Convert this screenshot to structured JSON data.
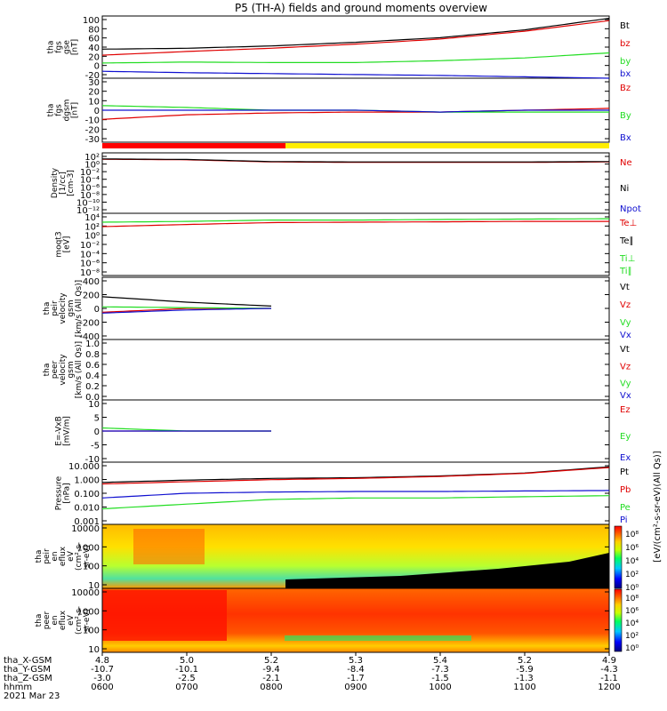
{
  "title": "P5 (TH-A) fields and ground moments overview",
  "date_label": "2021 Mar 23",
  "colors": {
    "black": "#000000",
    "red": "#e00000",
    "green": "#22dd22",
    "blue": "#1010d0",
    "bar_red": "#ff0000",
    "bar_yellow": "#ffee00"
  },
  "panels": [
    {
      "id": "fgs_gse",
      "ylabel": [
        "tha",
        "fgs",
        "gse",
        "[nT]"
      ],
      "ticks": [
        "100",
        "80",
        "60",
        "40",
        "20",
        "0",
        "-20"
      ],
      "legend": [
        {
          "text": "Bt",
          "color": "black"
        },
        {
          "text": "bz",
          "color": "red"
        },
        {
          "text": "by",
          "color": "green"
        },
        {
          "text": "bx",
          "color": "blue"
        }
      ]
    },
    {
      "id": "fgs_dgsm",
      "ylabel": [
        "tha",
        "fgs",
        "dgsm",
        "[nT]"
      ],
      "ticks": [
        "30",
        "20",
        "10",
        "0",
        "-10",
        "-20",
        "-30"
      ],
      "legend": [
        {
          "text": "Bz",
          "color": "red"
        },
        {
          "text": "By",
          "color": "green"
        },
        {
          "text": "Bx",
          "color": "blue"
        }
      ]
    },
    {
      "id": "density",
      "ylabel": [
        "Density",
        "[1/cc]",
        "[cm-3]"
      ],
      "ticks": [
        "10²",
        "10⁰",
        "10⁻²",
        "10⁻⁴",
        "10⁻⁶",
        "10⁻⁸",
        "10⁻¹⁰",
        "10⁻¹²"
      ],
      "legend": [
        {
          "text": "Ne",
          "color": "red"
        },
        {
          "text": "Ni",
          "color": "black"
        },
        {
          "text": "Npot",
          "color": "blue"
        }
      ]
    },
    {
      "id": "temp",
      "ylabel": [
        "moqt3",
        "[eV]"
      ],
      "ticks": [
        "10⁴",
        "10²",
        "10⁰",
        "10⁻²",
        "10⁻⁴",
        "10⁻⁶",
        "10⁻⁸"
      ],
      "legend": [
        {
          "text": "Te⊥",
          "color": "red"
        },
        {
          "text": "Te∥",
          "color": "black"
        },
        {
          "text": "Ti⊥",
          "color": "green"
        },
        {
          "text": "Ti∥",
          "color": "green"
        }
      ]
    },
    {
      "id": "peir_vel",
      "ylabel": [
        "tha",
        "peir",
        "velocity",
        "gsm",
        "[km/s (All Qs)]"
      ],
      "ticks": [
        "400",
        "200",
        "0",
        "-200",
        "-400"
      ],
      "legend": [
        {
          "text": "Vt",
          "color": "black"
        },
        {
          "text": "Vz",
          "color": "red"
        },
        {
          "text": "Vy",
          "color": "green"
        },
        {
          "text": "Vx",
          "color": "blue"
        }
      ]
    },
    {
      "id": "peer_vel",
      "ylabel": [
        "tha",
        "peer",
        "velocity",
        "gsm",
        "[km/s (All Qs)]"
      ],
      "ticks": [
        "1.0",
        "0.8",
        "0.6",
        "0.4",
        "0.2",
        "0.0"
      ],
      "legend": [
        {
          "text": "Vt",
          "color": "black"
        },
        {
          "text": "Vz",
          "color": "red"
        },
        {
          "text": "Vy",
          "color": "green"
        },
        {
          "text": "Vx",
          "color": "blue"
        }
      ]
    },
    {
      "id": "efield",
      "ylabel": [
        "E=-VxB",
        "[mV/m]"
      ],
      "ticks": [
        "10",
        "5",
        "0",
        "-5",
        "-10"
      ],
      "legend": [
        {
          "text": "Ez",
          "color": "red"
        },
        {
          "text": "Ey",
          "color": "green"
        },
        {
          "text": "Ex",
          "color": "blue"
        }
      ]
    },
    {
      "id": "pressure",
      "ylabel": [
        "Pressure",
        "[nPa]"
      ],
      "ticks": [
        "10.000",
        "1.000",
        "0.100",
        "0.010",
        "0.001"
      ],
      "legend": [
        {
          "text": "Pt",
          "color": "black"
        },
        {
          "text": "Pb",
          "color": "red"
        },
        {
          "text": "Pe",
          "color": "green"
        },
        {
          "text": "Pi",
          "color": "blue"
        }
      ]
    },
    {
      "id": "peir_en",
      "ylabel": [
        "tha",
        "peir",
        "en",
        "eflux",
        "eV",
        "(cm²-s-",
        "sr-eV)"
      ],
      "ticks": [
        "10000",
        "1000",
        "100",
        "10"
      ],
      "legend": []
    },
    {
      "id": "peer_en",
      "ylabel": [
        "tha",
        "peer",
        "en",
        "eflux",
        "eV",
        "(cm²-s-",
        "sr-eV)"
      ],
      "ticks": [
        "10000",
        "1000",
        "100",
        "10"
      ],
      "legend": []
    }
  ],
  "colorbar": {
    "label": "[eV/(cm²-s-sr-eV)(All Qs)]",
    "top_ticks": [
      "10⁸",
      "10⁶",
      "10⁴",
      "10²",
      "10⁰"
    ],
    "bottom_ticks": [
      "10⁸",
      "10⁶",
      "10⁴",
      "10²",
      "10⁰"
    ]
  },
  "xaxis": {
    "row_labels": [
      "tha_X-GSM",
      "tha_Y-GSM",
      "tha_Z-GSM",
      "hhmm",
      "2021 Mar 23"
    ],
    "columns": [
      [
        "4.8",
        "-10.7",
        "-3.0",
        "0600"
      ],
      [
        "5.0",
        "-10.1",
        "-2.5",
        "0700"
      ],
      [
        "5.2",
        "-9.4",
        "-2.1",
        "0800"
      ],
      [
        "5.3",
        "-8.4",
        "-1.7",
        "0900"
      ],
      [
        "5.4",
        "-7.3",
        "-1.5",
        "1000"
      ],
      [
        "5.2",
        "-5.9",
        "-1.3",
        "1100"
      ],
      [
        "4.9",
        "-4.3",
        "-1.1",
        "1200"
      ]
    ]
  },
  "chart_data": [
    {
      "type": "line",
      "panel": "fgs_gse",
      "ylim": [
        -30,
        105
      ],
      "time_range_hhmm": [
        "0600",
        "1200"
      ],
      "series": [
        {
          "name": "Bt",
          "x": [
            "0600",
            "0700",
            "0800",
            "0900",
            "1000",
            "1100",
            "1200"
          ],
          "values": [
            33,
            35,
            40,
            48,
            58,
            75,
            100
          ]
        },
        {
          "name": "bz",
          "x": [
            "0600",
            "0700",
            "0800",
            "0900",
            "1000",
            "1100",
            "1200"
          ],
          "values": [
            20,
            28,
            35,
            44,
            55,
            72,
            95
          ]
        },
        {
          "name": "by",
          "x": [
            "0600",
            "0700",
            "0800",
            "0900",
            "1000",
            "1100",
            "1200"
          ],
          "values": [
            3,
            5,
            4,
            4,
            8,
            14,
            25
          ]
        },
        {
          "name": "bx",
          "x": [
            "0600",
            "0700",
            "0800",
            "0900",
            "1000",
            "1100",
            "1200"
          ],
          "values": [
            -15,
            -18,
            -20,
            -22,
            -24,
            -27,
            -30
          ]
        }
      ]
    },
    {
      "type": "line",
      "panel": "fgs_dgsm",
      "ylim": [
        -35,
        35
      ],
      "series": [
        {
          "name": "Bz",
          "x": [
            "0600",
            "0700",
            "0800",
            "0900",
            "1000",
            "1100",
            "1200"
          ],
          "values": [
            -10,
            -5,
            -3,
            -2,
            -2,
            0,
            2
          ]
        },
        {
          "name": "By",
          "x": [
            "0600",
            "0700",
            "0800",
            "0900",
            "1000",
            "1100",
            "1200"
          ],
          "values": [
            5,
            3,
            0,
            0,
            -2,
            -2,
            -2
          ]
        },
        {
          "name": "Bx",
          "x": [
            "0600",
            "0700",
            "0800",
            "0900",
            "1000",
            "1100",
            "1200"
          ],
          "values": [
            0,
            0,
            0,
            0,
            -2,
            0,
            0
          ]
        }
      ]
    },
    {
      "type": "line",
      "panel": "density",
      "yscale": "log",
      "ylim": [
        1e-13,
        1000
      ],
      "series": [
        {
          "name": "Ne",
          "x": [
            "0600",
            "0700",
            "0800",
            "0900",
            "1000",
            "1100",
            "1200"
          ],
          "values": [
            20,
            15,
            4,
            3,
            3,
            3,
            4
          ]
        },
        {
          "name": "Ni",
          "x": [
            "0600",
            "0700",
            "0800",
            "0900",
            "1000",
            "1100",
            "1200"
          ],
          "values": [
            25,
            18,
            5,
            4,
            4,
            4,
            5
          ]
        }
      ]
    },
    {
      "type": "line",
      "panel": "temp",
      "yscale": "log",
      "ylim": [
        1e-09,
        100000
      ],
      "series": [
        {
          "name": "Te⊥",
          "x": [
            "0600",
            "0700",
            "0800",
            "0900",
            "1000",
            "1100",
            "1200"
          ],
          "values": [
            100,
            300,
            800,
            1000,
            1200,
            1500,
            1500
          ]
        },
        {
          "name": "Ti∥",
          "x": [
            "0600",
            "0700",
            "0800",
            "0900",
            "1000",
            "1100",
            "1200"
          ],
          "values": [
            1000,
            1500,
            3000,
            3000,
            4000,
            5000,
            6000
          ]
        }
      ]
    },
    {
      "type": "line",
      "panel": "peir_vel",
      "ylim": [
        -400,
        400
      ],
      "series": [
        {
          "name": "Vt",
          "x": [
            "0600",
            "0700",
            "0800"
          ],
          "values": [
            150,
            80,
            30
          ]
        },
        {
          "name": "Vz",
          "x": [
            "0600",
            "0700",
            "0800"
          ],
          "values": [
            -50,
            0,
            0
          ]
        },
        {
          "name": "Vy",
          "x": [
            "0600",
            "0700",
            "0800"
          ],
          "values": [
            20,
            10,
            0
          ]
        },
        {
          "name": "Vx",
          "x": [
            "0600",
            "0700",
            "0800"
          ],
          "values": [
            -60,
            -20,
            0
          ]
        }
      ]
    },
    {
      "type": "line",
      "panel": "efield",
      "ylim": [
        -10,
        10
      ],
      "series": [
        {
          "name": "Ez",
          "x": [
            "0600",
            "0700",
            "0800"
          ],
          "values": [
            0,
            0,
            0
          ]
        },
        {
          "name": "Ey",
          "x": [
            "0600",
            "0700",
            "0800"
          ],
          "values": [
            1,
            0,
            0
          ]
        },
        {
          "name": "Ex",
          "x": [
            "0600",
            "0700",
            "0800"
          ],
          "values": [
            0,
            0,
            0
          ]
        }
      ]
    },
    {
      "type": "line",
      "panel": "pressure",
      "yscale": "log",
      "ylim": [
        0.001,
        10
      ],
      "series": [
        {
          "name": "Pt",
          "x": [
            "0600",
            "0700",
            "0800",
            "0900",
            "1000",
            "1100",
            "1200"
          ],
          "values": [
            0.5,
            0.7,
            0.9,
            1.0,
            1.3,
            2.0,
            5.0
          ]
        },
        {
          "name": "Pb",
          "x": [
            "0600",
            "0700",
            "0800",
            "0900",
            "1000",
            "1100",
            "1200"
          ],
          "values": [
            0.4,
            0.55,
            0.75,
            0.9,
            1.2,
            1.9,
            4.5
          ]
        },
        {
          "name": "Pe",
          "x": [
            "0600",
            "0700",
            "0800",
            "0900",
            "1000",
            "1100",
            "1200"
          ],
          "values": [
            0.01,
            0.02,
            0.04,
            0.05,
            0.05,
            0.06,
            0.07
          ]
        },
        {
          "name": "Pi",
          "x": [
            "0600",
            "0700",
            "0800",
            "0900",
            "1000",
            "1100",
            "1200"
          ],
          "values": [
            0.05,
            0.1,
            0.12,
            0.13,
            0.13,
            0.14,
            0.15
          ]
        }
      ]
    },
    {
      "type": "heatmap",
      "panel": "peir_en",
      "yscale": "log",
      "ylim": [
        5,
        30000
      ]
    },
    {
      "type": "heatmap",
      "panel": "peer_en",
      "yscale": "log",
      "ylim": [
        5,
        30000
      ]
    }
  ]
}
